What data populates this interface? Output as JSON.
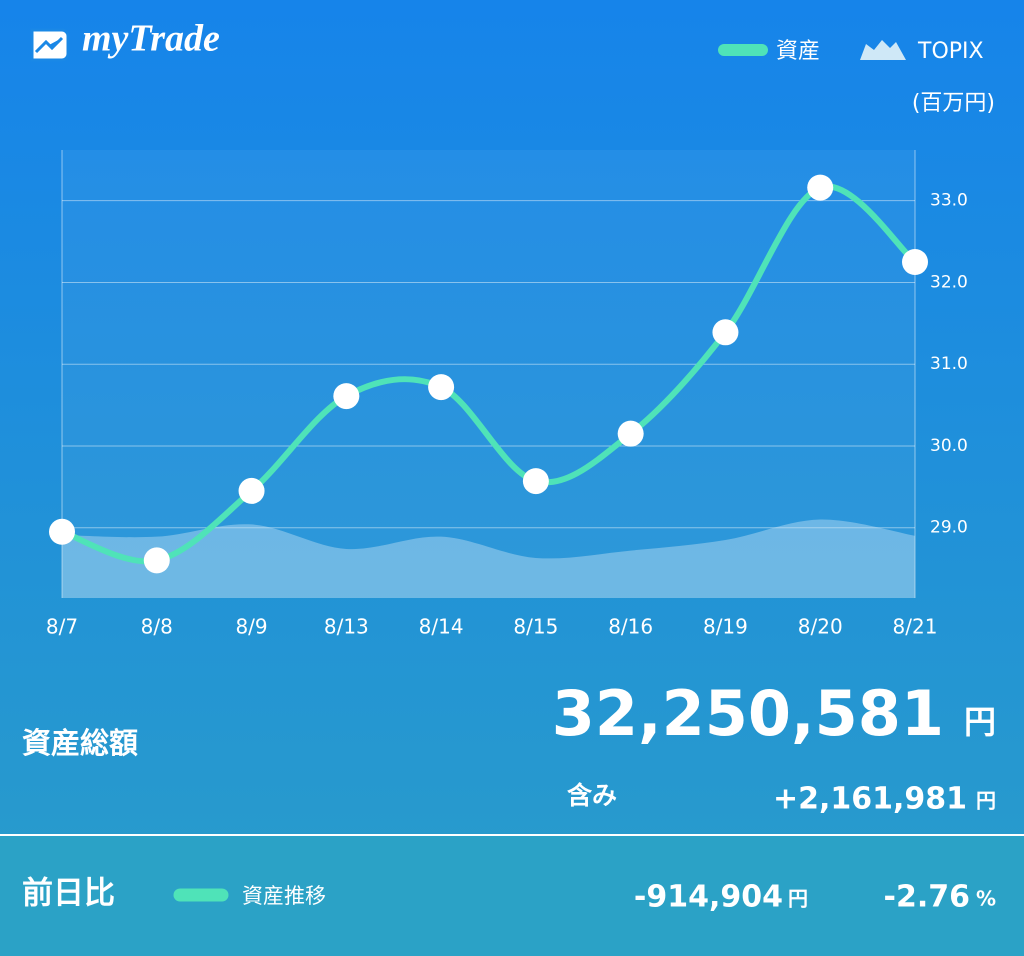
{
  "app": {
    "name": "myTrade"
  },
  "chart_data": {
    "type": "line",
    "categories": [
      "8/7",
      "8/8",
      "8/9",
      "8/13",
      "8/14",
      "8/15",
      "8/16",
      "8/19",
      "8/20",
      "8/21"
    ],
    "series": [
      {
        "name": "資産",
        "color": "#4fe3b8",
        "values": [
          28.95,
          28.6,
          29.45,
          30.61,
          30.72,
          29.57,
          30.15,
          31.39,
          33.16,
          32.25
        ]
      },
      {
        "name": "TOPIX",
        "color": "#cfe8f7",
        "values": [
          28.91,
          28.89,
          29.04,
          28.74,
          28.89,
          28.63,
          28.72,
          28.85,
          29.1,
          28.9
        ]
      }
    ],
    "ylabel": "(百万円)",
    "ylim": [
      28.14,
      33.62
    ],
    "yticks": [
      {
        "value": 29,
        "label": "29.0"
      },
      {
        "value": 30,
        "label": "30.0"
      },
      {
        "value": 31,
        "label": "31.0"
      },
      {
        "value": 32,
        "label": "32.0"
      },
      {
        "value": 33,
        "label": "33.0"
      }
    ],
    "grid": true
  },
  "summary": {
    "total_label": "資産総額",
    "total": "32,250,581",
    "total_unit": "円",
    "unrealized_label": "含み",
    "unrealized": "+2,161,981",
    "unrealized_unit": "円"
  },
  "change": {
    "label": "前日比",
    "legend_label": "資産推移",
    "amount": "-914,904",
    "amount_unit": "円",
    "percent": "-2.76",
    "percent_unit": "%"
  }
}
